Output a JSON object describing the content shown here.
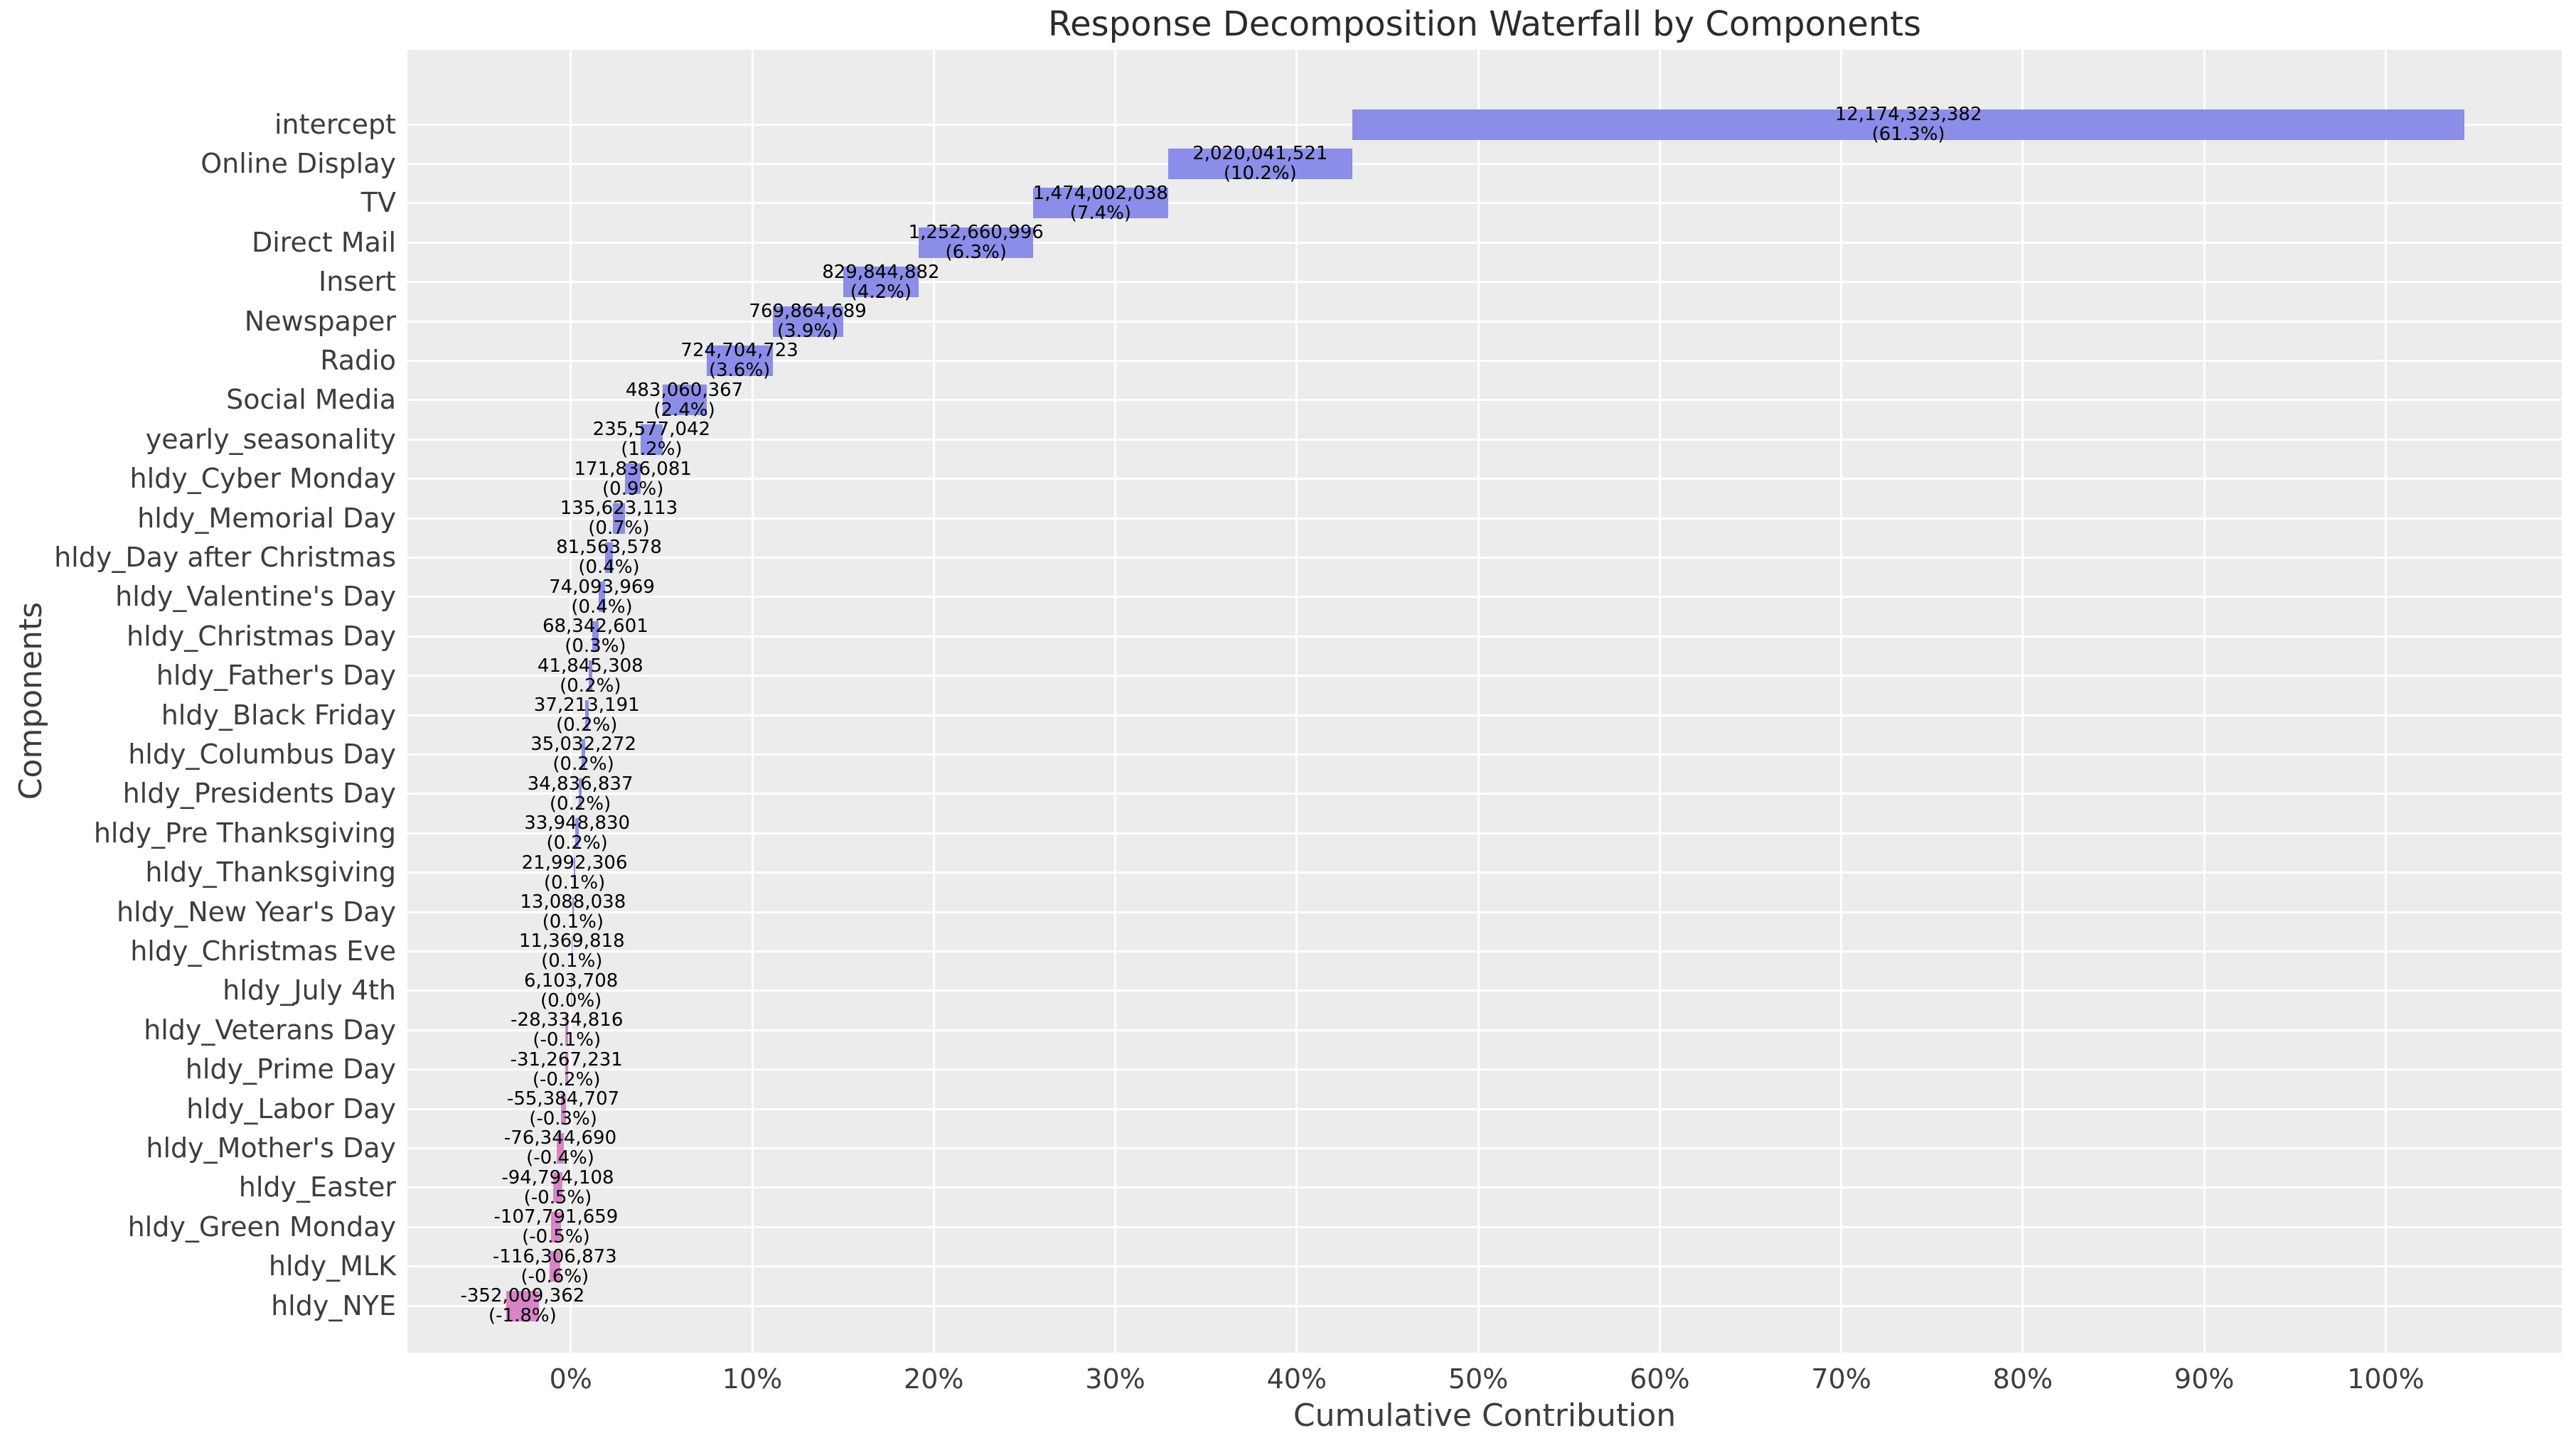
{
  "chart_data": {
    "type": "bar",
    "subtype": "waterfall",
    "orientation": "horizontal",
    "title": "Response Decomposition Waterfall by Components",
    "xlabel": "Cumulative Contribution",
    "ylabel": "Components",
    "legend": "none",
    "grid": "on",
    "x_axis": {
      "tick_labels": [
        "0%",
        "10%",
        "20%",
        "30%",
        "40%",
        "50%",
        "60%",
        "70%",
        "80%",
        "90%",
        "100%"
      ],
      "tick_values": [
        0,
        10,
        20,
        30,
        40,
        50,
        60,
        70,
        80,
        90,
        100
      ],
      "xlim_pct": [
        -9.0,
        109.7
      ]
    },
    "colors": {
      "positive_bar": "#8b8de8",
      "negative_bar": "#d884c6",
      "plot_background": "#ececec",
      "gridline": "#ffffff",
      "tick_text": "#3d3d3d",
      "title_text": "#2b2b2b",
      "bar_label_text": "#000000"
    },
    "items": [
      {
        "label": "intercept",
        "value": 12174323382,
        "value_display": "12,174,323,382",
        "pct_display": "(61.3%)"
      },
      {
        "label": "Online Display",
        "value": 2020041521,
        "value_display": "2,020,041,521",
        "pct_display": "(10.2%)"
      },
      {
        "label": "TV",
        "value": 1474002038,
        "value_display": "1,474,002,038",
        "pct_display": "(7.4%)"
      },
      {
        "label": "Direct Mail",
        "value": 1252660996,
        "value_display": "1,252,660,996",
        "pct_display": "(6.3%)"
      },
      {
        "label": "Insert",
        "value": 829844882,
        "value_display": "829,844,882",
        "pct_display": "(4.2%)"
      },
      {
        "label": "Newspaper",
        "value": 769864689,
        "value_display": "769,864,689",
        "pct_display": "(3.9%)"
      },
      {
        "label": "Radio",
        "value": 724704723,
        "value_display": "724,704,723",
        "pct_display": "(3.6%)"
      },
      {
        "label": "Social Media",
        "value": 483060367,
        "value_display": "483,060,367",
        "pct_display": "(2.4%)"
      },
      {
        "label": "yearly_seasonality",
        "value": 235577042,
        "value_display": "235,577,042",
        "pct_display": "(1.2%)"
      },
      {
        "label": "hldy_Cyber Monday",
        "value": 171836081,
        "value_display": "171,836,081",
        "pct_display": "(0.9%)"
      },
      {
        "label": "hldy_Memorial Day",
        "value": 135623113,
        "value_display": "135,623,113",
        "pct_display": "(0.7%)"
      },
      {
        "label": "hldy_Day after Christmas",
        "value": 81563578,
        "value_display": "81,563,578",
        "pct_display": "(0.4%)"
      },
      {
        "label": "hldy_Valentine's Day",
        "value": 74093969,
        "value_display": "74,093,969",
        "pct_display": "(0.4%)"
      },
      {
        "label": "hldy_Christmas Day",
        "value": 68342601,
        "value_display": "68,342,601",
        "pct_display": "(0.3%)"
      },
      {
        "label": "hldy_Father's Day",
        "value": 41845308,
        "value_display": "41,845,308",
        "pct_display": "(0.2%)"
      },
      {
        "label": "hldy_Black Friday",
        "value": 37213191,
        "value_display": "37,213,191",
        "pct_display": "(0.2%)"
      },
      {
        "label": "hldy_Columbus Day",
        "value": 35032272,
        "value_display": "35,032,272",
        "pct_display": "(0.2%)"
      },
      {
        "label": "hldy_Presidents Day",
        "value": 34836837,
        "value_display": "34,836,837",
        "pct_display": "(0.2%)"
      },
      {
        "label": "hldy_Pre Thanksgiving",
        "value": 33948830,
        "value_display": "33,948,830",
        "pct_display": "(0.2%)"
      },
      {
        "label": "hldy_Thanksgiving",
        "value": 21992306,
        "value_display": "21,992,306",
        "pct_display": "(0.1%)"
      },
      {
        "label": "hldy_New Year's Day",
        "value": 13088038,
        "value_display": "13,088,038",
        "pct_display": "(0.1%)"
      },
      {
        "label": "hldy_Christmas Eve",
        "value": 11369818,
        "value_display": "11,369,818",
        "pct_display": "(0.1%)"
      },
      {
        "label": "hldy_July 4th",
        "value": 6103708,
        "value_display": "6,103,708",
        "pct_display": "(0.0%)"
      },
      {
        "label": "hldy_Veterans Day",
        "value": -28334816,
        "value_display": "-28,334,816",
        "pct_display": "(-0.1%)"
      },
      {
        "label": "hldy_Prime Day",
        "value": -31267231,
        "value_display": "-31,267,231",
        "pct_display": "(-0.2%)"
      },
      {
        "label": "hldy_Labor Day",
        "value": -55384707,
        "value_display": "-55,384,707",
        "pct_display": "(-0.3%)"
      },
      {
        "label": "hldy_Mother's Day",
        "value": -76344690,
        "value_display": "-76,344,690",
        "pct_display": "(-0.4%)"
      },
      {
        "label": "hldy_Easter",
        "value": -94794108,
        "value_display": "-94,794,108",
        "pct_display": "(-0.5%)"
      },
      {
        "label": "hldy_Green Monday",
        "value": -107791659,
        "value_display": "-107,791,659",
        "pct_display": "(-0.5%)"
      },
      {
        "label": "hldy_MLK",
        "value": -116306873,
        "value_display": "-116,306,873",
        "pct_display": "(-0.6%)"
      },
      {
        "label": "hldy_NYE",
        "value": -352009362,
        "value_display": "-352,009,362",
        "pct_display": "(-1.8%)"
      }
    ]
  }
}
